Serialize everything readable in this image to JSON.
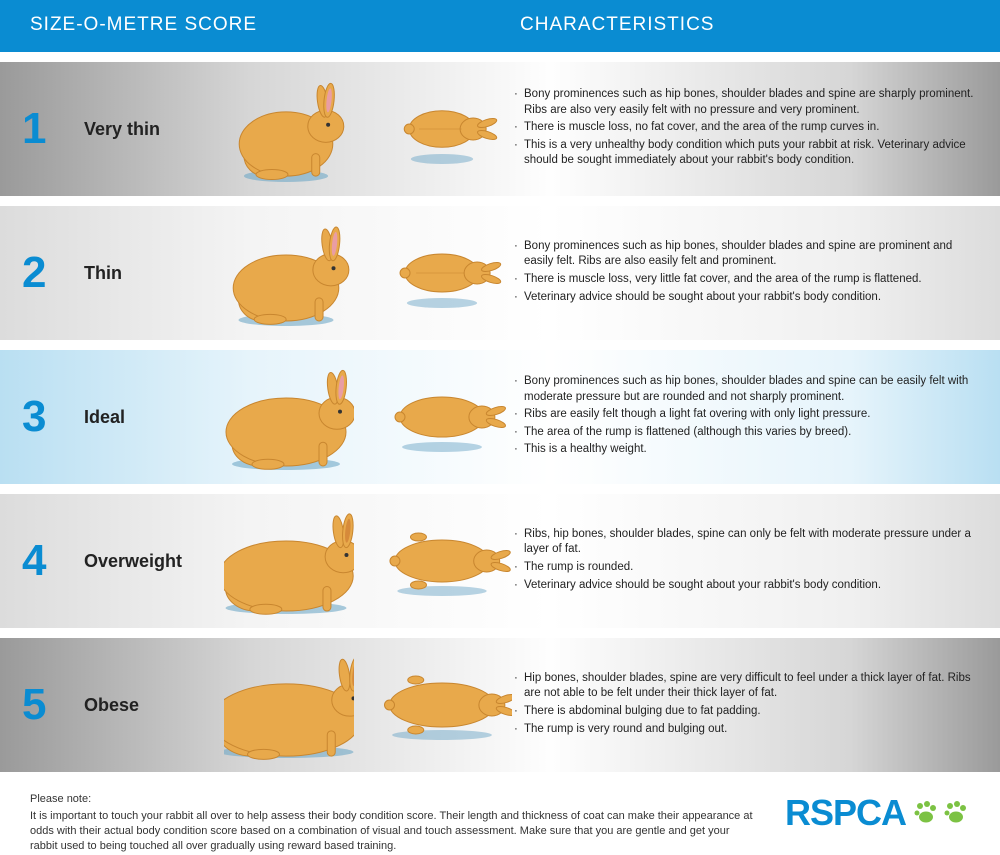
{
  "colors": {
    "header_bg": "#0a8cd2",
    "header_text": "#ffffff",
    "score_color": "#0a8cd2",
    "body_text": "#222222",
    "rabbit_fill": "#e8a94b",
    "rabbit_stroke": "#c8862f",
    "ear_inner": "#e99da4",
    "ear_inner_alt": "#d68a3a",
    "shadow": "#6fa8c7",
    "paw_fill": "#7cc243",
    "logo_text": "#0a8cd2",
    "row_gradients": [
      [
        "#9a9a9a",
        "#d6d6d6",
        "#fefefe",
        "#d6d6d6",
        "#9a9a9a"
      ],
      [
        "#dcdcdc",
        "#f4f4f4",
        "#ffffff",
        "#f0f0f0",
        "#dcdcdc"
      ],
      [
        "#b9dff2",
        "#e6f4fb",
        "#ffffff",
        "#e6f4fb",
        "#b9dff2"
      ],
      [
        "#dcdcdc",
        "#f4f4f4",
        "#ffffff",
        "#f0f0f0",
        "#dcdcdc"
      ],
      [
        "#9a9a9a",
        "#d6d6d6",
        "#fefefe",
        "#d6d6d6",
        "#9a9a9a"
      ]
    ]
  },
  "typography": {
    "header_font_size": 19,
    "score_font_size": 44,
    "label_font_size": 18,
    "body_font_size": 11.5,
    "footer_font_size": 11,
    "logo_font_size": 36
  },
  "header": {
    "col1": "SIZE-O-METRE SCORE",
    "col2": "CHARACTERISTICS"
  },
  "rows": [
    {
      "score": "1",
      "label": "Very thin",
      "body_scale": 0.78,
      "characteristics": [
        "Bony prominences such as hip bones, shoulder blades and spine are sharply prominent. Ribs are also very easily felt with no pressure and very prominent.",
        "There is muscle loss, no fat cover, and the area of the rump curves in.",
        "This is a very unhealthy body condition which puts your rabbit at risk. Veterinary advice should be sought immediately about your rabbit's body condition."
      ]
    },
    {
      "score": "2",
      "label": "Thin",
      "body_scale": 0.88,
      "characteristics": [
        "Bony prominences such as hip bones, shoulder blades and spine are prominent and easily felt. Ribs are also easily felt and prominent.",
        "There is muscle loss, very little fat cover, and the area of the rump is flattened.",
        "Veterinary advice should be sought about your rabbit's body condition."
      ]
    },
    {
      "score": "3",
      "label": "Ideal",
      "body_scale": 1.0,
      "characteristics": [
        "Bony prominences such as hip bones, shoulder blades and spine can be easily felt with moderate pressure but are rounded and not sharply prominent.",
        "Ribs are easily felt though a light fat overing with only light pressure.",
        "The area of the rump is flattened (although this varies by breed).",
        "This is a healthy weight."
      ]
    },
    {
      "score": "4",
      "label": "Overweight",
      "body_scale": 1.12,
      "characteristics": [
        "Ribs, hip bones, shoulder blades, spine can only be felt with moderate pressure under a layer of fat.",
        "The rump is rounded.",
        "Veterinary advice should be sought about your rabbit's body condition."
      ]
    },
    {
      "score": "5",
      "label": "Obese",
      "body_scale": 1.25,
      "characteristics": [
        "Hip bones, shoulder blades, spine are very difficult to feel under a thick layer of fat. Ribs are not able to be felt under their thick layer of fat.",
        "There is abdominal bulging due to fat padding.",
        "The rump is very round and bulging out."
      ]
    }
  ],
  "footer": {
    "note_label": "Please note:",
    "note_text": "It is important to touch your rabbit all over to help assess their body condition score. Their length and thickness of coat can make their appearance at odds with their actual body condition score based on a combination of visual and touch assessment. Make sure that you are gentle and get your rabbit used to being touched all over gradually using reward based training.",
    "logo_text": "RSPCA"
  }
}
